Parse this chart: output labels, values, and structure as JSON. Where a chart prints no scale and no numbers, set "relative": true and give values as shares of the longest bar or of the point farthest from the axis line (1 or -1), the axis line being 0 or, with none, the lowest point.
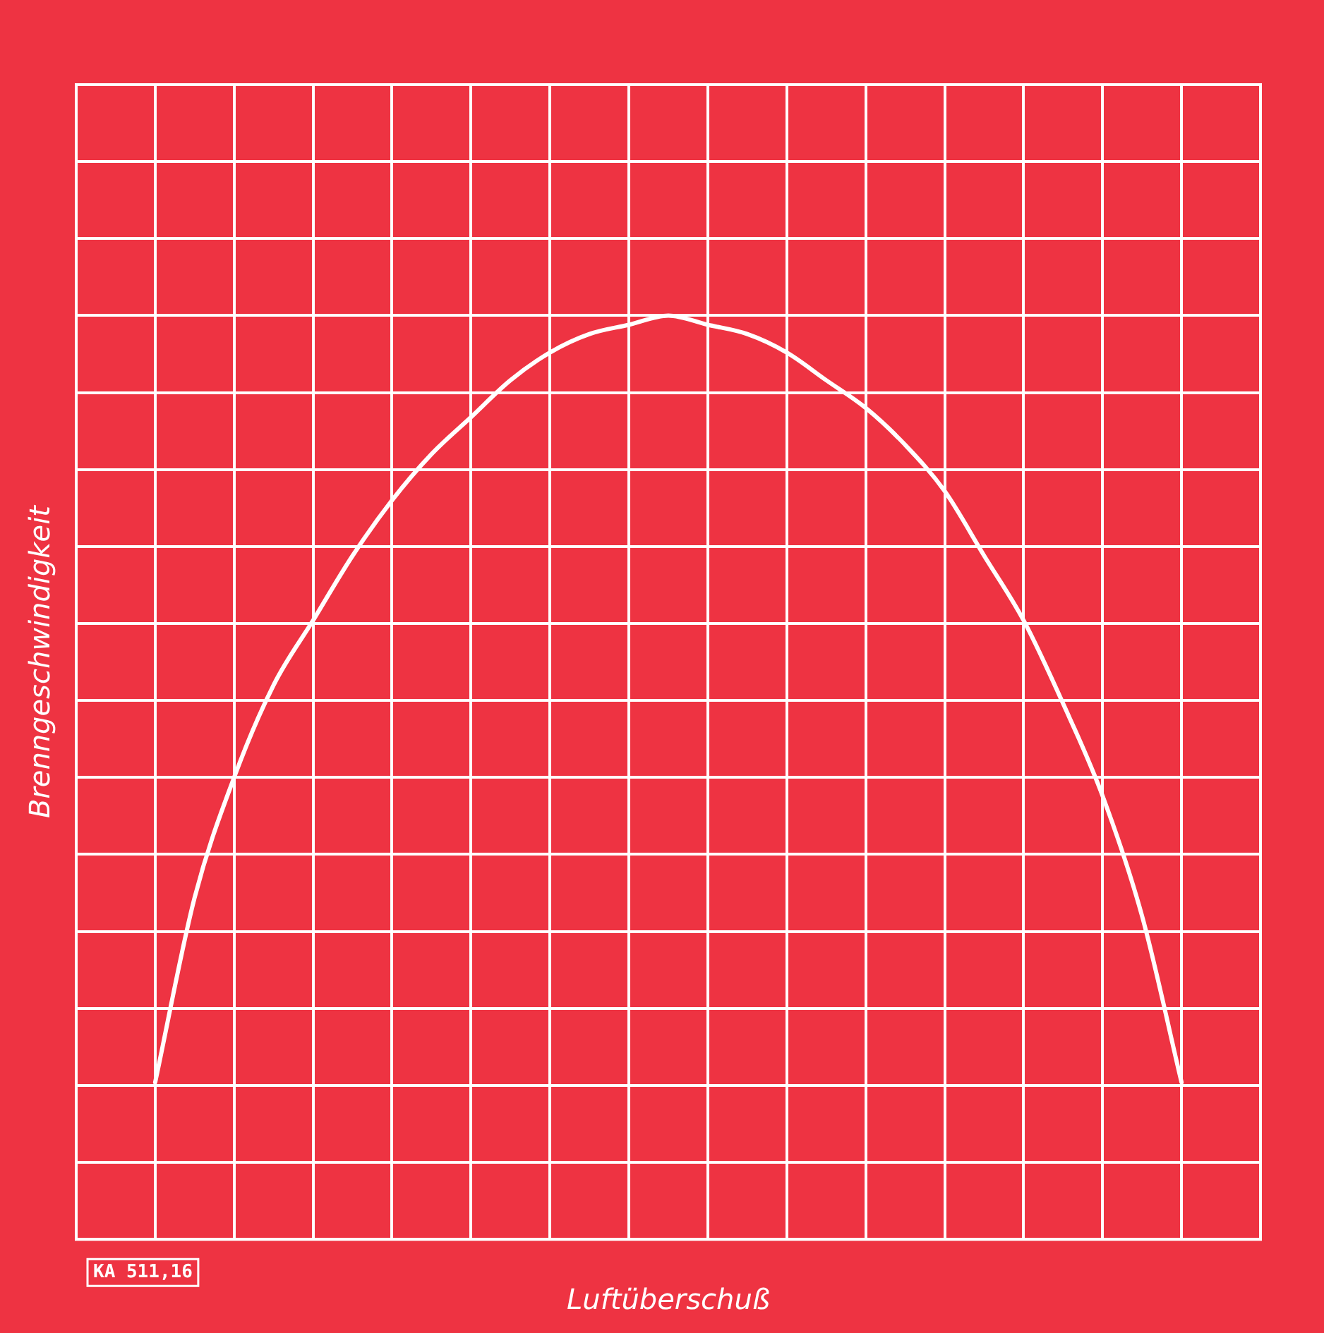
{
  "chart_data": {
    "type": "line",
    "relative": true,
    "xlabel": "Luftüberschuß",
    "ylabel": "Brenngeschwindigkeit",
    "annotations": [
      "KA 511,16"
    ],
    "categories": [
      null,
      null,
      null,
      null,
      null,
      null,
      null,
      null,
      null,
      null,
      null,
      null,
      null,
      null,
      null,
      null,
      null,
      null,
      null,
      null,
      null,
      null,
      null,
      null,
      null,
      null,
      null,
      null,
      null,
      null,
      null
    ],
    "series": [
      {
        "color": "#ffffff",
        "values": [
          null,
          null,
          0.17,
          0.37,
          0.5,
          0.6,
          0.67,
          0.74,
          0.8,
          0.85,
          0.89,
          0.93,
          0.96,
          0.98,
          0.99,
          1,
          0.99,
          0.98,
          0.96,
          0.93,
          0.9,
          0.86,
          0.81,
          0.74,
          0.67,
          0.58,
          0.48,
          0.35,
          0.17,
          null,
          null
        ]
      }
    ],
    "grid": true,
    "legend": false,
    "marker": "none",
    "line_style": "solid"
  }
}
